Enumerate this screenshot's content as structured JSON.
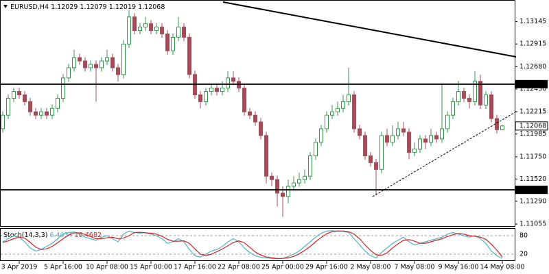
{
  "chart_data": {
    "type": "candlestick",
    "title": "EURUSD,H4",
    "categories": [
      null,
      null,
      null,
      "3 Apr 2019",
      null,
      null,
      null,
      null,
      null,
      null,
      null,
      "5 Apr 16:00",
      null,
      null,
      null,
      null,
      null,
      null,
      null,
      "10 Apr 08:00",
      null,
      null,
      null,
      null,
      null,
      null,
      null,
      "15 Apr 00:00",
      null,
      null,
      null,
      null,
      null,
      null,
      null,
      "17 Apr 16:00",
      null,
      null,
      null,
      null,
      null,
      null,
      null,
      "22 Apr 08:00",
      null,
      null,
      null,
      null,
      null,
      null,
      null,
      "25 Apr 00:00",
      null,
      null,
      null,
      null,
      null,
      null,
      null,
      "29 Apr 16:00",
      null,
      null,
      null,
      null,
      null,
      null,
      null,
      "2 May 08:00",
      null,
      null,
      null,
      null,
      null,
      null,
      null,
      "7 May 08:00",
      null,
      null,
      null,
      null,
      null,
      null,
      null,
      "9 May 16:00",
      null,
      null,
      null,
      null,
      null,
      null,
      null,
      "14 May 08:00"
    ],
    "open": [
      1.12039,
      1.12179,
      1.12354,
      1.12424,
      1.12389,
      1.12319,
      1.12214,
      1.12179,
      1.12214,
      1.12179,
      1.12249,
      1.12354,
      1.12564,
      1.12669,
      1.12774,
      1.12739,
      1.12669,
      1.12704,
      1.12669,
      1.12739,
      1.12774,
      1.12669,
      1.12599,
      1.12914,
      1.13194,
      1.13054,
      1.13089,
      1.13124,
      1.13054,
      1.13089,
      1.13019,
      1.12844,
      1.12984,
      1.13089,
      1.12984,
      1.12599,
      1.12389,
      1.12319,
      1.12424,
      1.12459,
      1.12424,
      1.12459,
      1.12564,
      1.12529,
      1.12459,
      1.12214,
      1.12179,
      1.12109,
      1.11969,
      1.11549,
      1.11514,
      1.11374,
      1.11339,
      1.11444,
      1.11479,
      1.11514,
      1.11549,
      1.11759,
      1.11899,
      1.12039,
      1.12179,
      1.12214,
      1.12249,
      1.12319,
      1.12389,
      1.12039,
      1.11969,
      1.11759,
      1.11689,
      1.11619,
      1.11969,
      1.11899,
      1.11969,
      1.12039,
      1.12004,
      1.11794,
      1.11829,
      1.11934,
      1.11899,
      1.11969,
      1.11934,
      1.12039,
      1.12179,
      1.12319,
      1.12424,
      1.12354,
      1.12319,
      1.12529,
      1.12284,
      1.12389,
      1.12144,
      1.12029
    ],
    "high": [
      1.12219,
      1.12394,
      1.12464,
      1.12464,
      1.12429,
      1.12359,
      1.12254,
      1.12254,
      1.12254,
      1.12289,
      1.12394,
      1.12604,
      1.12709,
      1.12854,
      1.12814,
      1.12779,
      1.12744,
      1.12744,
      1.12779,
      1.12854,
      1.12814,
      1.12709,
      1.12954,
      1.13264,
      1.13234,
      1.13129,
      1.13194,
      1.13164,
      1.13129,
      1.13129,
      1.13059,
      1.13024,
      1.13194,
      1.13129,
      1.13024,
      1.12639,
      1.12429,
      1.12464,
      1.12499,
      1.12499,
      1.12529,
      1.12634,
      1.12634,
      1.12569,
      1.12499,
      1.12254,
      1.12219,
      1.12149,
      1.12009,
      1.11589,
      1.11554,
      1.11444,
      1.11514,
      1.11549,
      1.11584,
      1.11619,
      1.11799,
      1.11939,
      1.12079,
      1.12219,
      1.12284,
      1.12319,
      1.12389,
      1.12669,
      1.12429,
      1.12079,
      1.12009,
      1.11799,
      1.11729,
      1.12009,
      1.12039,
      1.12074,
      1.12109,
      1.12109,
      1.12044,
      1.11899,
      1.11974,
      1.11974,
      1.12039,
      1.12009,
      1.12499,
      1.12219,
      1.12359,
      1.12534,
      1.12464,
      1.12394,
      1.12634,
      1.12599,
      1.12429,
      1.12429,
      1.12184,
      1.12079
    ],
    "low": [
      1.11999,
      1.12139,
      1.12314,
      1.12349,
      1.12279,
      1.12174,
      1.12139,
      1.12139,
      1.12139,
      1.12139,
      1.12209,
      1.12314,
      1.12524,
      1.12629,
      1.12699,
      1.12629,
      1.12629,
      1.12319,
      1.12629,
      1.12699,
      1.12629,
      1.12529,
      1.12559,
      1.12874,
      1.13014,
      1.13014,
      1.13049,
      1.13014,
      1.13014,
      1.12979,
      1.12804,
      1.12804,
      1.12944,
      1.12944,
      1.12559,
      1.12349,
      1.12249,
      1.12279,
      1.12384,
      1.12384,
      1.12384,
      1.12419,
      1.12489,
      1.12419,
      1.12174,
      1.12139,
      1.12069,
      1.11929,
      1.11474,
      1.11444,
      1.11234,
      1.11129,
      1.11269,
      1.11409,
      1.11439,
      1.11474,
      1.11509,
      1.11719,
      1.11859,
      1.11999,
      1.12139,
      1.12174,
      1.12209,
      1.12279,
      1.11999,
      1.11929,
      1.11719,
      1.11649,
      1.11353,
      1.11579,
      1.11859,
      1.11859,
      1.11929,
      1.11964,
      1.11724,
      1.11754,
      1.11789,
      1.11829,
      1.11859,
      1.11894,
      1.11894,
      1.11999,
      1.12139,
      1.12279,
      1.12314,
      1.12249,
      1.12279,
      1.12244,
      1.12244,
      1.12104,
      1.11989,
      1.12019
    ],
    "close": [
      1.12179,
      1.12354,
      1.12424,
      1.12389,
      1.12319,
      1.12214,
      1.12179,
      1.12214,
      1.12179,
      1.12249,
      1.12354,
      1.12564,
      1.12669,
      1.12774,
      1.12739,
      1.12669,
      1.12704,
      1.12669,
      1.12739,
      1.12774,
      1.12669,
      1.12599,
      1.12914,
      1.13194,
      1.13054,
      1.13089,
      1.13124,
      1.13054,
      1.13089,
      1.13019,
      1.12844,
      1.12984,
      1.13089,
      1.12984,
      1.12599,
      1.12389,
      1.12319,
      1.12424,
      1.12459,
      1.12424,
      1.12459,
      1.12564,
      1.12529,
      1.12459,
      1.12214,
      1.12179,
      1.12109,
      1.11969,
      1.11549,
      1.11514,
      1.11374,
      1.11339,
      1.11444,
      1.11479,
      1.11514,
      1.11549,
      1.11759,
      1.11899,
      1.12039,
      1.12179,
      1.12214,
      1.12249,
      1.12319,
      1.12389,
      1.12039,
      1.11969,
      1.11759,
      1.11689,
      1.11619,
      1.11969,
      1.11899,
      1.11969,
      1.12039,
      1.12004,
      1.11794,
      1.11829,
      1.11934,
      1.11899,
      1.11969,
      1.11934,
      1.12039,
      1.12179,
      1.12319,
      1.12424,
      1.12354,
      1.12319,
      1.12529,
      1.12284,
      1.12389,
      1.12144,
      1.12029,
      1.12068
    ],
    "up_color": "#2f9a45",
    "down_color": "#a84a55",
    "ylim": [
      1.11034,
      1.13369
    ],
    "yticks": [
      1.13145,
      1.12915,
      {
        "value": 1.1268,
        "label": "1.12680"
      },
      {
        "value": 1.1245,
        "label": "1.12450"
      },
      1.12215,
      1.11985,
      {
        "value": 1.1175,
        "label": "1.11750"
      },
      {
        "value": 1.1152,
        "label": "1.11520"
      },
      {
        "value": 1.1129,
        "label": "1.11290"
      },
      1.11055
    ],
    "levels": [
      {
        "value": 1.125,
        "label": "1.12500"
      },
      {
        "value": 1.11408,
        "label": "1.11408"
      }
    ],
    "indicator": {
      "type": "line",
      "name": "Stoch(14,3,3)",
      "ylim": [
        0,
        100
      ],
      "yticks": [
        80,
        20
      ],
      "series": [
        {
          "color": "#4fb3c4",
          "values": [
            60,
            70,
            80,
            75,
            60,
            40,
            30,
            35,
            45,
            55,
            70,
            85,
            90,
            92,
            85,
            75,
            70,
            65,
            75,
            80,
            70,
            60,
            85,
            95,
            90,
            88,
            90,
            85,
            80,
            70,
            55,
            60,
            70,
            60,
            35,
            15,
            10,
            20,
            30,
            35,
            45,
            60,
            70,
            60,
            40,
            25,
            15,
            10,
            8,
            6,
            5,
            6,
            12,
            20,
            30,
            45,
            60,
            75,
            88,
            95,
            96,
            95,
            94,
            90,
            70,
            50,
            30,
            15,
            8,
            25,
            40,
            55,
            65,
            75,
            60,
            50,
            55,
            60,
            65,
            70,
            75,
            85,
            90,
            85,
            80,
            75,
            80,
            70,
            55,
            30,
            15,
            6.4034
          ]
        },
        {
          "color": "#d02020",
          "values": [
            58,
            63,
            70,
            75,
            72,
            58,
            43,
            35,
            37,
            45,
            57,
            70,
            82,
            89,
            89,
            84,
            77,
            70,
            70,
            73,
            75,
            70,
            72,
            80,
            90,
            91,
            89,
            88,
            85,
            78,
            68,
            62,
            62,
            63,
            55,
            37,
            20,
            15,
            20,
            28,
            37,
            47,
            58,
            63,
            57,
            42,
            27,
            17,
            11,
            8,
            6,
            6,
            8,
            13,
            21,
            32,
            45,
            60,
            74,
            86,
            93,
            95,
            95,
            93,
            85,
            70,
            50,
            32,
            18,
            16,
            24,
            40,
            53,
            65,
            67,
            62,
            55,
            55,
            60,
            65,
            70,
            77,
            83,
            87,
            85,
            80,
            78,
            75,
            68,
            52,
            33,
            10.4682
          ]
        }
      ]
    }
  }
}
